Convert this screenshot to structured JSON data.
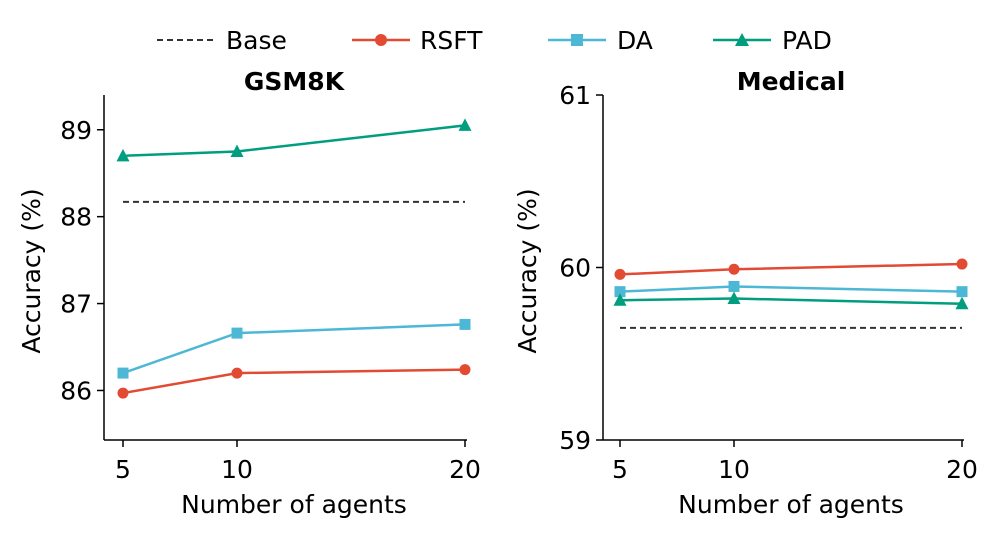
{
  "legend": [
    {
      "name": "Base",
      "style": "dashed",
      "marker": "none"
    },
    {
      "name": "RSFT",
      "style": "solid",
      "marker": "circle"
    },
    {
      "name": "DA",
      "style": "solid",
      "marker": "square"
    },
    {
      "name": "PAD",
      "style": "solid",
      "marker": "triangle"
    }
  ],
  "colors": {
    "Base": "#333333",
    "RSFT": "#e24a33",
    "DA": "#4db8d6",
    "PAD": "#009e7f"
  },
  "chart_data": [
    {
      "type": "line",
      "title": "GSM8K",
      "xlabel": "Number of agents",
      "ylabel": "Accuracy (%)",
      "x": [
        5,
        10,
        20
      ],
      "x_ticks": [
        "5",
        "10",
        "20"
      ],
      "xlim": [
        5,
        20
      ],
      "ylim": [
        85.43,
        89.4
      ],
      "y_ticks": [
        "86",
        "87",
        "88",
        "89"
      ],
      "y_tick_values": [
        86,
        87,
        88,
        89
      ],
      "baseline": {
        "name": "Base",
        "value": 88.17
      },
      "series": [
        {
          "name": "RSFT",
          "values": [
            85.97,
            86.2,
            86.24
          ]
        },
        {
          "name": "DA",
          "values": [
            86.2,
            86.66,
            86.76
          ]
        },
        {
          "name": "PAD",
          "values": [
            88.7,
            88.75,
            89.05
          ]
        }
      ]
    },
    {
      "type": "line",
      "title": "Medical",
      "xlabel": "Number of agents",
      "ylabel": "Accuracy (%)",
      "x": [
        5,
        10,
        20
      ],
      "x_ticks": [
        "5",
        "10",
        "20"
      ],
      "xlim": [
        5,
        20
      ],
      "ylim": [
        59,
        61
      ],
      "y_ticks": [
        "59",
        "60",
        "61"
      ],
      "y_tick_values": [
        59,
        60,
        61
      ],
      "baseline": {
        "name": "Base",
        "value": 59.65
      },
      "series": [
        {
          "name": "RSFT",
          "values": [
            59.96,
            59.99,
            60.02
          ]
        },
        {
          "name": "DA",
          "values": [
            59.86,
            59.89,
            59.86
          ]
        },
        {
          "name": "PAD",
          "values": [
            59.81,
            59.82,
            59.79
          ]
        }
      ]
    }
  ]
}
